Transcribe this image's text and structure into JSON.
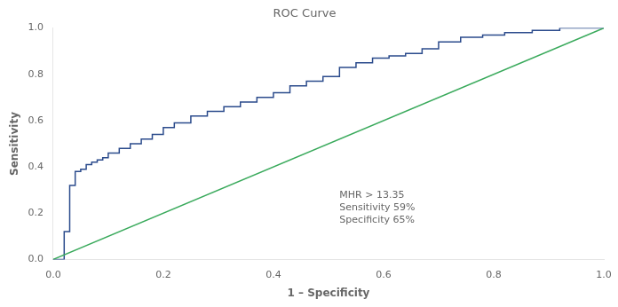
{
  "chart_data": {
    "type": "line",
    "title": "ROC Curve",
    "x_label": "1 – Specificity",
    "y_label": "Sensitivity",
    "xlim": [
      0.0,
      1.0
    ],
    "ylim": [
      0.0,
      1.0
    ],
    "xticks": [
      {
        "value": 0.0,
        "label": "0.0"
      },
      0.2,
      0.4,
      0.6,
      0.8,
      {
        "value": 1.0,
        "label": "1.0"
      }
    ],
    "yticks": [
      {
        "value": 0.0,
        "label": "0.0"
      },
      0.2,
      0.4,
      0.6,
      0.8,
      {
        "value": 1.0,
        "label": "1.0"
      }
    ],
    "grid": false,
    "series": [
      {
        "color": "#3aaa5c",
        "x": [
          0,
          1
        ],
        "values": [
          0,
          1
        ]
      },
      {
        "color": "#2b4b8c",
        "x": [
          0.0,
          0.02,
          0.02,
          0.03,
          0.03,
          0.04,
          0.04,
          0.05,
          0.05,
          0.06,
          0.06,
          0.07,
          0.07,
          0.08,
          0.08,
          0.09,
          0.09,
          0.1,
          0.1,
          0.12,
          0.12,
          0.14,
          0.14,
          0.16,
          0.16,
          0.18,
          0.18,
          0.2,
          0.2,
          0.22,
          0.22,
          0.25,
          0.25,
          0.28,
          0.28,
          0.31,
          0.31,
          0.34,
          0.34,
          0.37,
          0.37,
          0.4,
          0.4,
          0.43,
          0.43,
          0.46,
          0.46,
          0.49,
          0.49,
          0.52,
          0.52,
          0.55,
          0.55,
          0.58,
          0.58,
          0.61,
          0.61,
          0.64,
          0.64,
          0.67,
          0.67,
          0.7,
          0.7,
          0.74,
          0.74,
          0.78,
          0.78,
          0.82,
          0.82,
          0.87,
          0.87,
          0.92,
          0.92,
          0.96,
          0.96,
          1.0
        ],
        "values": [
          0.0,
          0.0,
          0.12,
          0.12,
          0.32,
          0.32,
          0.38,
          0.38,
          0.39,
          0.39,
          0.41,
          0.41,
          0.42,
          0.42,
          0.43,
          0.43,
          0.44,
          0.44,
          0.46,
          0.46,
          0.48,
          0.48,
          0.5,
          0.5,
          0.52,
          0.52,
          0.54,
          0.54,
          0.57,
          0.57,
          0.59,
          0.59,
          0.62,
          0.62,
          0.64,
          0.64,
          0.66,
          0.66,
          0.68,
          0.68,
          0.7,
          0.7,
          0.72,
          0.72,
          0.75,
          0.75,
          0.77,
          0.77,
          0.79,
          0.79,
          0.83,
          0.83,
          0.85,
          0.85,
          0.87,
          0.87,
          0.88,
          0.88,
          0.89,
          0.89,
          0.91,
          0.91,
          0.94,
          0.94,
          0.96,
          0.96,
          0.97,
          0.97,
          0.98,
          0.98,
          0.99,
          0.99,
          1.0,
          1.0,
          1.0,
          1.0
        ]
      }
    ],
    "annotations": [
      {
        "text": "MHR > 13.35\nSensitivity 59%\nSpecificity 65%",
        "x": 0.52,
        "y": 0.3
      }
    ]
  }
}
